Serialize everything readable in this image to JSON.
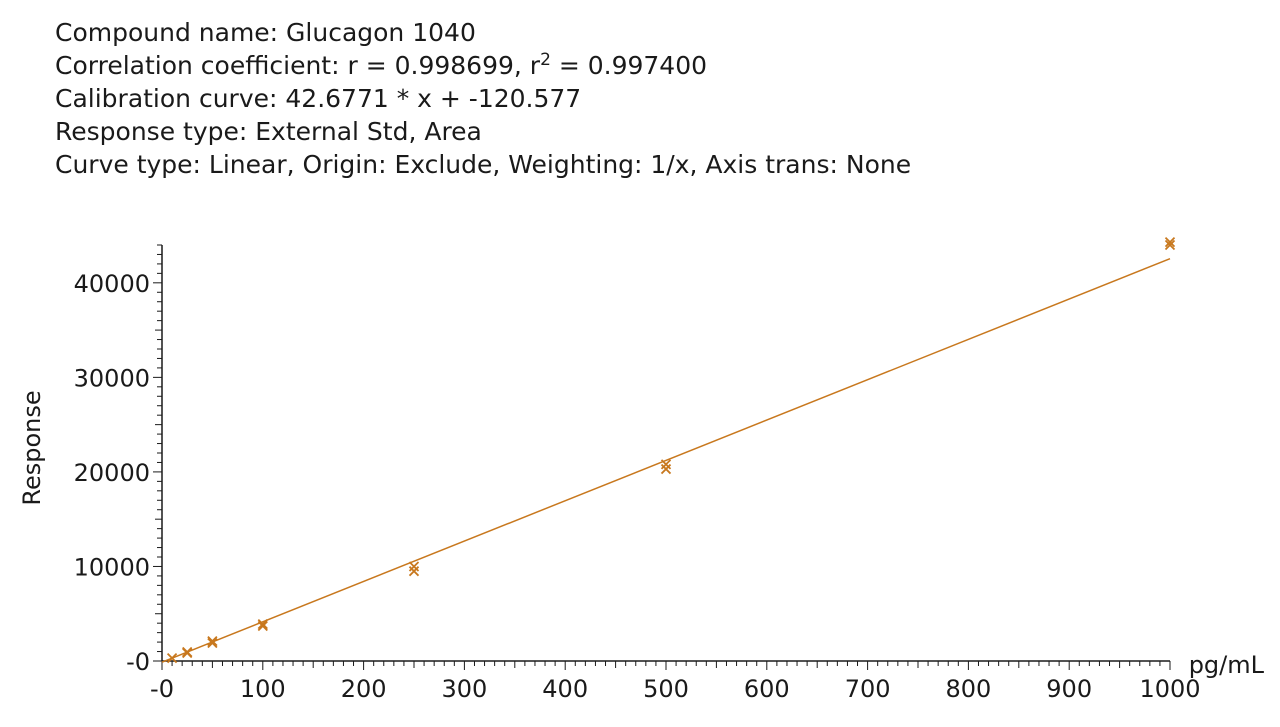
{
  "header": {
    "compound_name": "Compound name: Glucagon 1040",
    "corr_prefix": "Correlation coefficient: r = 0.998699, r",
    "corr_sup": "2",
    "corr_suffix": " = 0.997400",
    "calibration": "Calibration curve: 42.6771 * x + -120.577",
    "response_type": "Response type: External Std, Area",
    "curve_type": "Curve type: Linear, Origin: Exclude, Weighting: 1/x, Axis trans: None"
  },
  "colors": {
    "series": "#c8781e",
    "axis": "#1a1a1a"
  },
  "chart_data": {
    "type": "scatter",
    "xlabel": "pg/mL",
    "ylabel": "Response",
    "xlim": [
      0,
      1000
    ],
    "ylim": [
      0,
      44000
    ],
    "x_ticks": [
      0,
      100,
      200,
      300,
      400,
      500,
      600,
      700,
      800,
      900,
      1000
    ],
    "x_tick_labels": [
      "-0",
      "100",
      "200",
      "300",
      "400",
      "500",
      "600",
      "700",
      "800",
      "900",
      "1000"
    ],
    "y_ticks": [
      0,
      10000,
      20000,
      30000,
      40000
    ],
    "y_tick_labels": [
      "-0",
      "10000",
      "20000",
      "30000",
      "40000"
    ],
    "fit_line": {
      "slope": 42.6771,
      "intercept": -120.577,
      "x_range": [
        0,
        1000
      ]
    },
    "points": [
      {
        "x": 10,
        "y": 300
      },
      {
        "x": 25,
        "y": 850
      },
      {
        "x": 25,
        "y": 950
      },
      {
        "x": 50,
        "y": 1900
      },
      {
        "x": 50,
        "y": 2100
      },
      {
        "x": 100,
        "y": 3700
      },
      {
        "x": 100,
        "y": 3900
      },
      {
        "x": 250,
        "y": 9500
      },
      {
        "x": 250,
        "y": 10000
      },
      {
        "x": 500,
        "y": 20300
      },
      {
        "x": 500,
        "y": 20800
      },
      {
        "x": 1000,
        "y": 44000
      },
      {
        "x": 1000,
        "y": 44300
      }
    ]
  }
}
